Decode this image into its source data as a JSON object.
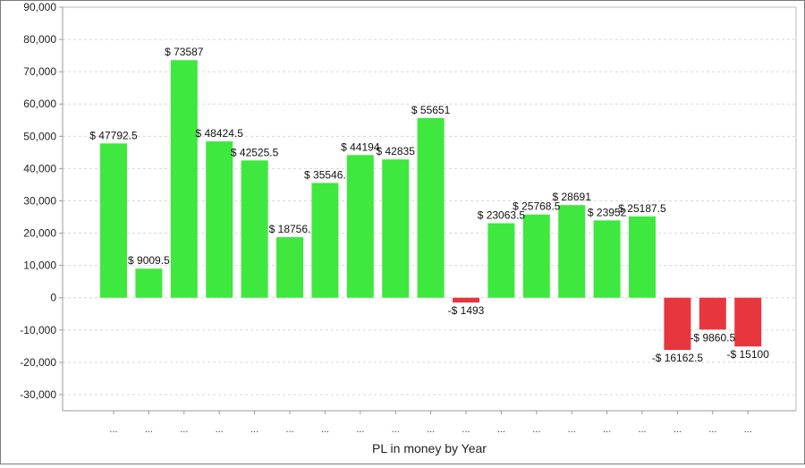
{
  "chart_data": {
    "type": "bar",
    "title": "",
    "xlabel": "PL in money by Year",
    "ylabel": "",
    "ylim": [
      -35000,
      90000
    ],
    "y_ticks": [
      -30000,
      -20000,
      -10000,
      0,
      10000,
      20000,
      30000,
      40000,
      50000,
      60000,
      70000,
      80000,
      90000
    ],
    "y_tick_labels": [
      "-30,000",
      "-20,000",
      "-10,000",
      "0",
      "10,000",
      "20,000",
      "30,000",
      "40,000",
      "50,000",
      "60,000",
      "70,000",
      "80,000",
      "90,000"
    ],
    "grid": true,
    "categories": [
      "...",
      "...",
      "...",
      "...",
      "...",
      "...",
      "...",
      "...",
      "...",
      "...",
      "...",
      "...",
      "...",
      "...",
      "...",
      "...",
      "...",
      "...",
      "..."
    ],
    "values": [
      47792.5,
      9009.5,
      73587,
      48424.5,
      42525.5,
      18756,
      35546,
      44194,
      42835,
      55651,
      -1493,
      23063.5,
      25768.5,
      28691,
      23952,
      25187.5,
      -16162.5,
      -9860.5,
      -15100
    ],
    "data_labels": [
      "$ 47792.5",
      "$ 9009.5",
      "$ 73587",
      "$ 48424.5",
      "$ 42525.5",
      "$ 18756.",
      "$ 35546.",
      "$ 44194",
      "$ 42835",
      "$ 55651",
      "-$ 1493",
      "$ 23063.5",
      "$ 25768.5",
      "$ 28691",
      "$ 23952",
      "$ 25187.5",
      "-$ 16162.5",
      "-$ 9860.5",
      "-$ 15100"
    ],
    "colors": {
      "positive": "#3ee83e",
      "negative": "#e8363f",
      "grid": "#d8d8d8",
      "axis": "#9a9a9a"
    }
  }
}
